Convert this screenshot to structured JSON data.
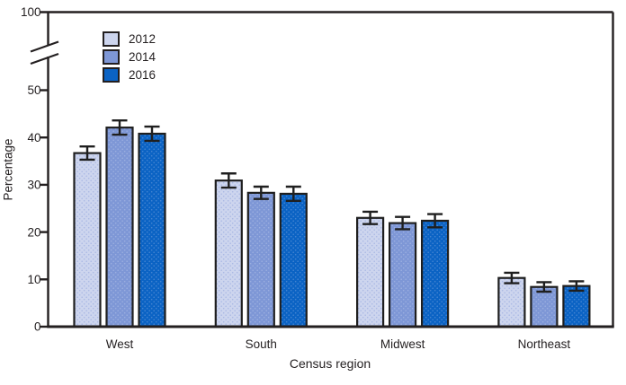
{
  "page": {
    "background": "#ffffff",
    "text_color": "#231f20",
    "axis_color": "#231f20"
  },
  "chart_data": {
    "type": "bar",
    "title": "",
    "xlabel": "Census region",
    "ylabel": "Percentage",
    "categories": [
      "West",
      "South",
      "Midwest",
      "Northeast"
    ],
    "series": [
      {
        "name": "2012",
        "color": "#cdd5ee",
        "dot_color": "#aab9e4",
        "values": [
          36.7,
          30.9,
          23.0,
          10.3
        ],
        "errors": [
          1.4,
          1.5,
          1.3,
          1.1
        ]
      },
      {
        "name": "2014",
        "color": "#7e97d6",
        "dot_color": "#9cafe0",
        "values": [
          42.1,
          28.3,
          21.9,
          8.4
        ],
        "errors": [
          1.5,
          1.3,
          1.3,
          1.0
        ]
      },
      {
        "name": "2016",
        "color": "#0b63c4",
        "dot_color": "#4485d2",
        "values": [
          40.8,
          28.1,
          22.4,
          8.6
        ],
        "errors": [
          1.5,
          1.5,
          1.4,
          1.0
        ]
      }
    ],
    "y_axis": {
      "ticks": [
        0,
        10,
        20,
        30,
        40,
        50
      ],
      "break_after": 50,
      "top_tick_label": 100,
      "linear_range": [
        0,
        55
      ]
    },
    "error_bars": true,
    "grid": false,
    "legend_position": "top-left-inside"
  }
}
